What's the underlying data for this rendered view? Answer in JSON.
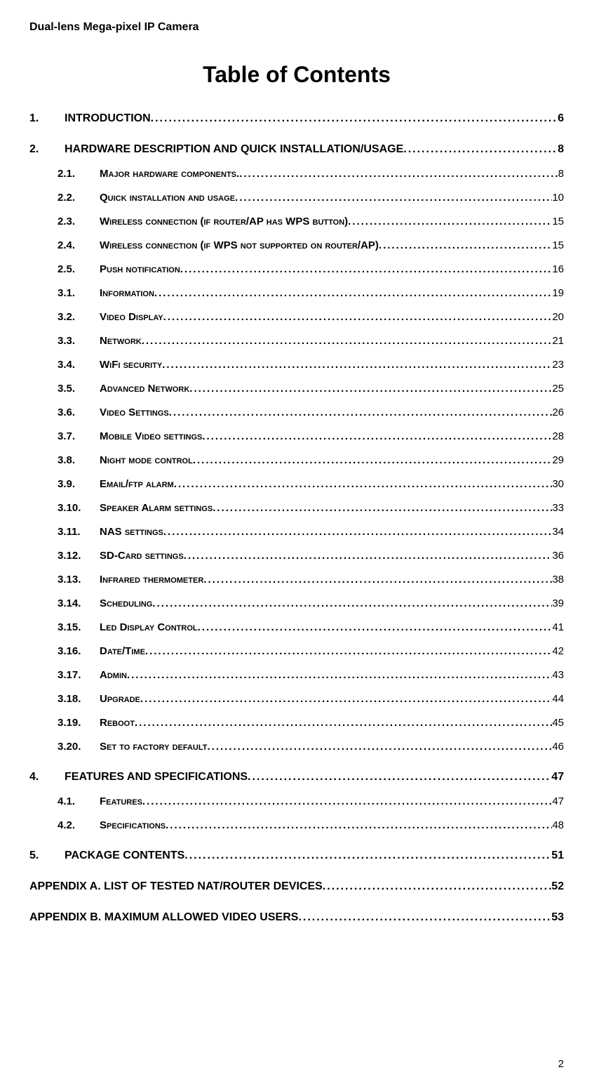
{
  "header": "Dual-lens Mega-pixel IP Camera",
  "title": "Table of Contents",
  "pageNumber": "2",
  "entries": [
    {
      "level": 1,
      "num": "1.",
      "label": "INTRODUCTION",
      "page": "6"
    },
    {
      "level": 1,
      "num": "2.",
      "label": "HARDWARE DESCRIPTION AND QUICK INSTALLATION/USAGE",
      "page": "8"
    },
    {
      "level": 2,
      "num": "2.1.",
      "label": "Major hardware components.",
      "page": "8"
    },
    {
      "level": 2,
      "num": "2.2.",
      "label": "Quick installation and usage",
      "page": "10"
    },
    {
      "level": 2,
      "num": "2.3.",
      "label": "Wireless connection (if router/AP has WPS button)",
      "page": "15"
    },
    {
      "level": 2,
      "num": "2.4.",
      "label": "Wireless connection (if WPS not supported on router/AP)",
      "page": "15"
    },
    {
      "level": 2,
      "num": "2.5.",
      "label": "Push notification",
      "page": "16"
    },
    {
      "level": 2,
      "num": "3.1.",
      "label": "Information",
      "page": "19"
    },
    {
      "level": 2,
      "num": "3.2.",
      "label": "Video Display",
      "page": "20"
    },
    {
      "level": 2,
      "num": "3.3.",
      "label": "Network",
      "page": "21"
    },
    {
      "level": 2,
      "num": "3.4.",
      "label": "WiFi security",
      "page": "23"
    },
    {
      "level": 2,
      "num": "3.5.",
      "label": "Advanced Network",
      "page": "25"
    },
    {
      "level": 2,
      "num": "3.6.",
      "label": "Video Settings",
      "page": "26"
    },
    {
      "level": 2,
      "num": "3.7.",
      "label": "Mobile Video settings",
      "page": "28"
    },
    {
      "level": 2,
      "num": "3.8.",
      "label": "Night mode control",
      "page": "29"
    },
    {
      "level": 2,
      "num": "3.9.",
      "label": "Email/ftp alarm",
      "page": "30"
    },
    {
      "level": 2,
      "num": "3.10.",
      "label": "Speaker Alarm settings",
      "page": "33"
    },
    {
      "level": 2,
      "num": "3.11.",
      "label": "NAS settings",
      "page": "34"
    },
    {
      "level": 2,
      "num": "3.12.",
      "label": "SD-Card settings",
      "page": "36"
    },
    {
      "level": 2,
      "num": "3.13.",
      "label": "Infrared thermometer",
      "page": "38"
    },
    {
      "level": 2,
      "num": "3.14.",
      "label": "Scheduling",
      "page": "39"
    },
    {
      "level": 2,
      "num": "3.15.",
      "label": "Led Display Control",
      "page": "41"
    },
    {
      "level": 2,
      "num": "3.16.",
      "label": "Date/Time",
      "page": "42"
    },
    {
      "level": 2,
      "num": "3.17.",
      "label": "Admin",
      "page": "43"
    },
    {
      "level": 2,
      "num": "3.18.",
      "label": "Upgrade",
      "page": "44"
    },
    {
      "level": 2,
      "num": "3.19.",
      "label": "Reboot",
      "page": "45"
    },
    {
      "level": 2,
      "num": "3.20.",
      "label": "Set to factory default",
      "page": "46"
    },
    {
      "level": 1,
      "num": "4.",
      "label": "FEATURES AND SPECIFICATIONS",
      "page": "47"
    },
    {
      "level": 2,
      "num": "4.1.",
      "label": "Features",
      "page": "47"
    },
    {
      "level": 2,
      "num": "4.2.",
      "label": "Specifications",
      "page": "48"
    },
    {
      "level": 1,
      "num": "5.",
      "label": "PACKAGE CONTENTS",
      "page": "51"
    },
    {
      "level": 1,
      "num": "",
      "label": "APPENDIX A. LIST OF TESTED NAT/ROUTER DEVICES",
      "page": "52"
    },
    {
      "level": 1,
      "num": "",
      "label": "APPENDIX B. MAXIMUM ALLOWED VIDEO USERS",
      "page": "53"
    }
  ]
}
